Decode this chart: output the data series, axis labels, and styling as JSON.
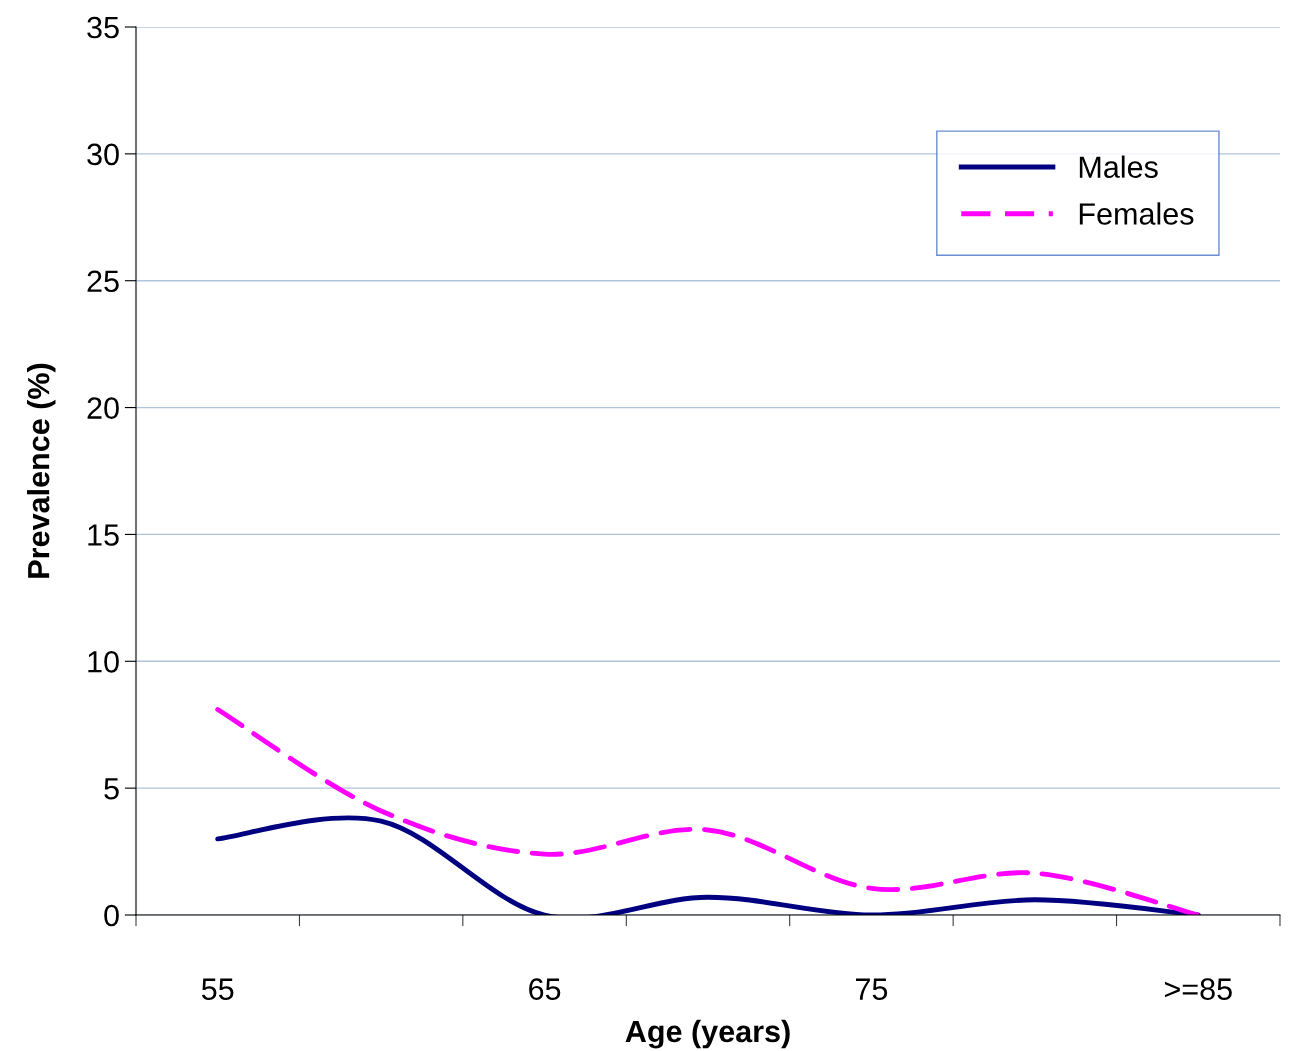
{
  "chart_data": {
    "type": "line",
    "xlabel": "Age (years)",
    "ylabel": "Prevalence (%)",
    "categories": [
      "55",
      null,
      "65",
      null,
      "75",
      null,
      ">=85"
    ],
    "series": [
      {
        "name": "Males",
        "color": "#000080",
        "line_style": "solid",
        "values": [
          3.0,
          3.7,
          0,
          0.7,
          0,
          0.6,
          0
        ]
      },
      {
        "name": "Females",
        "color": "#ff00ff",
        "line_style": "dashed",
        "values": [
          8.1,
          4.1,
          2.4,
          3.35,
          1.05,
          1.65,
          0
        ]
      }
    ],
    "ylim": [
      0,
      35
    ],
    "yticks": [
      0,
      5,
      10,
      15,
      20,
      25,
      30,
      35
    ],
    "grid": "y",
    "legend": "top right",
    "marker": "none"
  }
}
